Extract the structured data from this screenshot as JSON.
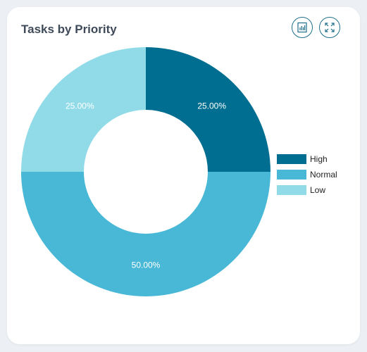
{
  "card": {
    "title": "Tasks by Priority"
  },
  "toolbar": {
    "report_icon": "bar-chart-report-icon",
    "expand_icon": "expand-arrows-icon"
  },
  "colors": {
    "High": "#006e91",
    "Normal": "#48b8d6",
    "Low": "#91dbe9",
    "accent": "#1f6f8b"
  },
  "chart_data": {
    "type": "pie",
    "donut": true,
    "categories": [
      "High",
      "Normal",
      "Low"
    ],
    "values": [
      25,
      50,
      25
    ],
    "labels": [
      "25.00%",
      "50.00%",
      "25.00%"
    ],
    "legend": "right"
  }
}
